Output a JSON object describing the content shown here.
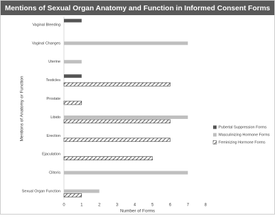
{
  "chart_data": {
    "type": "hbar",
    "title": "Mentions of Sexual Organ Anatomy and Function in Informed Consent Forms",
    "x_label": "Number of Forms",
    "y_label": "Mentions of Anatomy or Function",
    "categories": [
      "Vaginal Bleeding",
      "Vaginal Changes",
      "Uterine",
      "Testicles",
      "Prostate",
      "Libido",
      "Erection",
      "Ejaculation",
      "Clitoris",
      "Sexual Organ Function"
    ],
    "series": [
      {
        "name": "Pubertal Suppression Forms",
        "color": "#555555",
        "values": [
          1,
          null,
          null,
          1,
          null,
          null,
          null,
          null,
          null,
          null
        ]
      },
      {
        "name": "Masculinizing Hormone Forms",
        "color": "#bfbfbf",
        "values": [
          null,
          7,
          1,
          null,
          null,
          7,
          null,
          null,
          7,
          2
        ]
      },
      {
        "name": "Feminizing Hormone Forms",
        "color": "#333333",
        "pattern": "hatch",
        "values": [
          null,
          null,
          null,
          6,
          1,
          6,
          6,
          5,
          null,
          1
        ]
      }
    ],
    "xlim": [
      0,
      8
    ],
    "xticks": [
      0,
      1,
      2,
      3,
      4,
      5,
      6,
      7,
      8
    ],
    "grid": false,
    "legend": "right"
  }
}
